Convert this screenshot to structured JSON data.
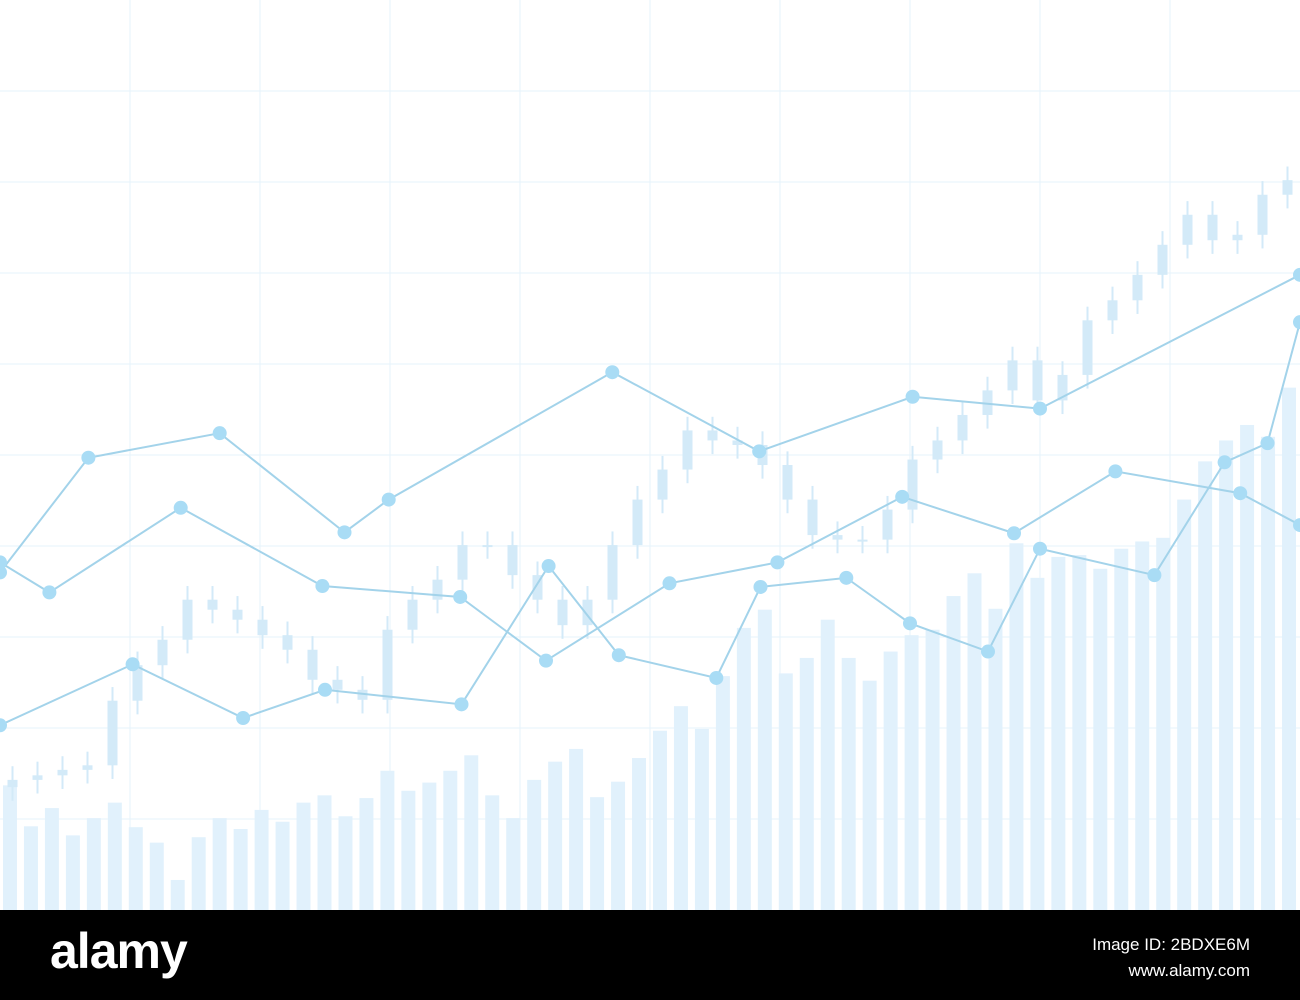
{
  "chart_data": [
    {
      "type": "bar",
      "color": "#e1f1fc",
      "ylim": [
        0,
        100
      ],
      "values": [
        13.7,
        9.2,
        11.2,
        8.2,
        10.1,
        11.8,
        9.1,
        7.4,
        3.3,
        8.0,
        10.1,
        8.9,
        11.0,
        9.7,
        11.8,
        12.6,
        10.3,
        12.3,
        15.3,
        13.1,
        14.0,
        15.3,
        17.0,
        12.6,
        10.1,
        14.3,
        16.3,
        17.7,
        12.4,
        14.1,
        16.7,
        19.7,
        22.4,
        19.9,
        25.7,
        31.0,
        33.0,
        26.0,
        27.7,
        31.9,
        27.7,
        25.2,
        28.4,
        30.2,
        30.8,
        34.5,
        37.0,
        33.1,
        40.3,
        36.5,
        38.8,
        39.0,
        37.5,
        39.7,
        40.5,
        40.9,
        45.1,
        49.3,
        51.6,
        53.3,
        52.0,
        57.4
      ]
    },
    {
      "type": "candlestick",
      "color": "#d3eaf8",
      "ylim": [
        0,
        100
      ],
      "open": [
        13.5,
        14.3,
        14.8,
        15.4,
        15.9,
        23,
        26.9,
        29.7,
        34.1,
        33,
        31.9,
        30.2,
        28.6,
        25.3,
        24.2,
        23.1,
        30.8,
        34.1,
        36.3,
        40.1,
        40.1,
        36.8,
        34.1,
        31.3,
        34.1,
        40.1,
        45.1,
        48.4,
        52.7,
        51.6,
        51.1,
        48.9,
        45.1,
        41.2,
        40.7,
        40.7,
        44,
        49.5,
        51.6,
        54.4,
        57.1,
        60.4,
        56,
        58.8,
        64.8,
        67,
        69.8,
        73.1,
        76.4,
        73.6,
        74.2,
        78.6
      ],
      "close": [
        14.3,
        14.8,
        15.4,
        15.9,
        23,
        26.9,
        29.7,
        34.1,
        33,
        31.9,
        30.2,
        28.6,
        25.3,
        24.2,
        23.1,
        30.8,
        34.1,
        36.3,
        40.1,
        40.1,
        36.8,
        34.1,
        31.3,
        34.1,
        40.1,
        45.1,
        48.4,
        52.7,
        51.6,
        51.1,
        48.9,
        45.1,
        41.2,
        40.7,
        40.7,
        44,
        49.5,
        51.6,
        54.4,
        57.1,
        60.4,
        56,
        58.8,
        64.8,
        67,
        69.8,
        73.1,
        76.4,
        73.6,
        74.2,
        78.6,
        80.2
      ],
      "high": [
        15.8,
        16.3,
        16.9,
        17.4,
        24.5,
        28.4,
        31.2,
        35.6,
        35.6,
        34.5,
        33.4,
        31.7,
        30.1,
        26.8,
        25.7,
        32.3,
        35.6,
        37.8,
        41.6,
        41.6,
        41.6,
        38.3,
        35.6,
        35.6,
        41.6,
        46.6,
        49.9,
        54.2,
        54.2,
        53.1,
        52.6,
        50.4,
        46.6,
        42.7,
        42.2,
        45.5,
        51,
        53.1,
        55.9,
        58.6,
        61.9,
        61.9,
        60.3,
        66.3,
        68.5,
        71.3,
        74.6,
        77.9,
        77.9,
        75.7,
        80.1,
        81.7
      ],
      "low": [
        12,
        12.8,
        13.3,
        13.9,
        14.4,
        21.5,
        25.4,
        28.2,
        31.5,
        30.4,
        28.7,
        27.1,
        23.8,
        22.7,
        21.6,
        21.6,
        29.3,
        32.6,
        34.8,
        38.6,
        35.3,
        32.6,
        29.8,
        29.8,
        32.6,
        38.6,
        43.6,
        46.9,
        50.1,
        49.6,
        47.4,
        43.6,
        39.7,
        39.2,
        39.2,
        39.2,
        42.5,
        48,
        50.1,
        52.9,
        55.6,
        54.5,
        54.5,
        57.3,
        63.3,
        65.5,
        68.3,
        71.6,
        72.1,
        72.1,
        72.7,
        77.1
      ]
    },
    {
      "type": "line",
      "xlim": [
        0,
        100
      ],
      "ylim": [
        0,
        100
      ],
      "xticks": [
        10,
        20,
        30,
        40,
        50,
        60,
        70,
        80,
        90
      ],
      "yticks": [
        10,
        20,
        30,
        40,
        50,
        60,
        70,
        80,
        90
      ],
      "grid": true,
      "series": [
        {
          "color": "#a3d3ea",
          "x": [
            0,
            6.8,
            16.9,
            26.5,
            29.9,
            47.1,
            58.4,
            70.2,
            80,
            100
          ],
          "values": [
            37.1,
            49.7,
            52.4,
            41.5,
            45.1,
            59.1,
            50.4,
            56.4,
            55.1,
            69.8
          ]
        },
        {
          "color": "#a3d3ea",
          "x": [
            0,
            3.8,
            13.9,
            24.8,
            35.4,
            42,
            51.5,
            59.8,
            69.4,
            78,
            85.8,
            95.4,
            100
          ],
          "values": [
            38.2,
            34.9,
            44.2,
            35.6,
            34.4,
            27.4,
            35.9,
            38.2,
            45.4,
            41.4,
            48.2,
            45.8,
            42.3
          ]
        },
        {
          "color": "#a3d3ea",
          "x": [
            0,
            10.2,
            18.7,
            25,
            35.5,
            42.2,
            47.6,
            55.1,
            58.5,
            65.1,
            70,
            76,
            80,
            88.8,
            94.2,
            97.5,
            100
          ],
          "values": [
            20.3,
            27,
            21.1,
            24.2,
            22.6,
            37.8,
            28,
            25.5,
            35.5,
            36.5,
            31.5,
            28.4,
            39.7,
            36.8,
            49.2,
            51.3,
            64.6
          ]
        }
      ]
    }
  ],
  "banner": {
    "brand": "alamy",
    "image_id": "Image ID: 2BDXE6M",
    "url": "www.alamy.com"
  }
}
